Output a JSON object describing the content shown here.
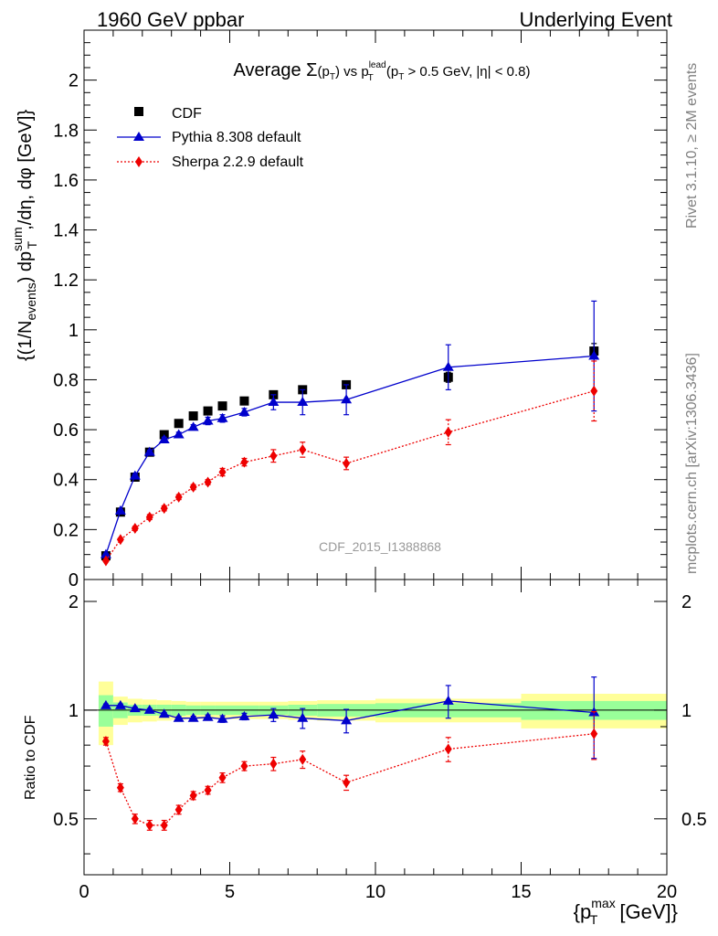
{
  "header": {
    "left": "1960 GeV ppbar",
    "right": "Underlying Event"
  },
  "side_labels": {
    "rivet": "Rivet 3.1.10, ≥ 2M events",
    "mcplots": "mcplots.cern.ch [arXiv:1306.3436]"
  },
  "watermark": "CDF_2015_I1388868",
  "colors": {
    "cdf": "#000000",
    "pythia": "#0000cc",
    "sherpa": "#ee0000",
    "band_inner": "#99ff99",
    "band_outer": "#ffff99"
  },
  "chart_data": [
    {
      "type": "scatter",
      "title": "Average Σ(pT) vs pT lead (pT > 0.5 GeV, |η| < 0.8)",
      "title_parts": {
        "prefix": "Average ",
        "sigma": "Σ",
        "p": "p",
        "T": "T",
        "vs": " vs ",
        "lead": "lead",
        "cut_open": " (p",
        "cut_rest": " > 0.5 GeV, |η| < 0.8)"
      },
      "ylabel": "{(1/N_events) dp_T^sum/dη, dφ [GeV]}",
      "ylabel_parts": {
        "open": "{(1/N",
        "events": "events",
        "mid": ") dp",
        "sum": "sum",
        "T": "T",
        "rest": ",/dη, dφ [GeV]}"
      },
      "xlim": [
        0,
        20
      ],
      "ylim": [
        0,
        2.2
      ],
      "yticks": [
        0,
        0.2,
        0.4,
        0.6,
        0.8,
        1,
        1.2,
        1.4,
        1.6,
        1.8,
        2
      ],
      "ytick_labels": [
        "0",
        "0.2",
        "0.4",
        "0.6",
        "0.8",
        "1",
        "1.2",
        "1.4",
        "1.6",
        "1.8",
        "2"
      ],
      "legend_position": "top-left",
      "series": [
        {
          "name": "CDF",
          "style": "square",
          "x": [
            0.75,
            1.25,
            1.75,
            2.25,
            2.75,
            3.25,
            3.75,
            4.25,
            4.75,
            5.5,
            6.5,
            7.5,
            9,
            12.5,
            17.5
          ],
          "y": [
            0.095,
            0.27,
            0.41,
            0.51,
            0.58,
            0.625,
            0.655,
            0.675,
            0.695,
            0.715,
            0.74,
            0.76,
            0.78,
            0.81,
            0.915
          ],
          "yerr": [
            0.005,
            0.01,
            0.01,
            0.01,
            0.01,
            0.01,
            0.01,
            0.01,
            0.01,
            0.01,
            0.01,
            0.01,
            0.01,
            0.02,
            0.03
          ]
        },
        {
          "name": "Pythia 8.308 default",
          "style": "triangle",
          "x": [
            0.75,
            1.25,
            1.75,
            2.25,
            2.75,
            3.25,
            3.75,
            4.25,
            4.75,
            5.5,
            6.5,
            7.5,
            9,
            12.5,
            17.5
          ],
          "y": [
            0.1,
            0.275,
            0.415,
            0.51,
            0.56,
            0.58,
            0.61,
            0.635,
            0.645,
            0.67,
            0.71,
            0.71,
            0.72,
            0.85,
            0.895
          ],
          "yerr": [
            0.003,
            0.005,
            0.008,
            0.008,
            0.01,
            0.01,
            0.01,
            0.015,
            0.015,
            0.015,
            0.03,
            0.05,
            0.06,
            0.09,
            0.22
          ]
        },
        {
          "name": "Sherpa 2.2.9 default",
          "style": "diamond",
          "x": [
            0.75,
            1.25,
            1.75,
            2.25,
            2.75,
            3.25,
            3.75,
            4.25,
            4.75,
            5.5,
            6.5,
            7.5,
            9,
            12.5,
            17.5
          ],
          "y": [
            0.075,
            0.16,
            0.205,
            0.25,
            0.285,
            0.33,
            0.37,
            0.39,
            0.43,
            0.47,
            0.495,
            0.52,
            0.465,
            0.59,
            0.755
          ],
          "yerr": [
            0.003,
            0.005,
            0.008,
            0.01,
            0.01,
            0.01,
            0.01,
            0.01,
            0.015,
            0.015,
            0.025,
            0.03,
            0.025,
            0.05,
            0.12
          ]
        }
      ]
    },
    {
      "type": "scatter",
      "ylabel": "Ratio to CDF",
      "xlabel": "{pT max [GeV]}",
      "xlabel_parts": {
        "open": "{p",
        "max": "max",
        "T": "T",
        "rest": " [GeV]}"
      },
      "xlim": [
        0,
        20
      ],
      "ylim": [
        0.35,
        2.3
      ],
      "yticks": [
        0.5,
        1,
        2
      ],
      "ytick_labels": [
        "0.5",
        "1",
        "2"
      ],
      "xticks": [
        0,
        5,
        10,
        15,
        20
      ],
      "xtick_labels": [
        "0",
        "5",
        "10",
        "15",
        "20"
      ],
      "bands": {
        "x_edges": [
          0.5,
          1.0,
          1.5,
          2.0,
          2.5,
          3.0,
          3.5,
          4.0,
          4.5,
          5.0,
          6.0,
          7.0,
          8.0,
          10.0,
          15.0,
          20.0
        ],
        "inner_half": [
          0.1,
          0.05,
          0.035,
          0.035,
          0.035,
          0.035,
          0.03,
          0.03,
          0.03,
          0.03,
          0.03,
          0.035,
          0.04,
          0.045,
          0.06
        ],
        "outer_half": [
          0.2,
          0.09,
          0.075,
          0.07,
          0.065,
          0.06,
          0.055,
          0.055,
          0.055,
          0.055,
          0.055,
          0.06,
          0.065,
          0.075,
          0.11
        ]
      },
      "series": [
        {
          "name": "Pythia 8.308 default",
          "style": "triangle",
          "x": [
            0.75,
            1.25,
            1.75,
            2.25,
            2.75,
            3.25,
            3.75,
            4.25,
            4.75,
            5.5,
            6.5,
            7.5,
            9,
            12.5,
            17.5
          ],
          "y": [
            1.03,
            1.03,
            1.01,
            1.0,
            0.975,
            0.95,
            0.95,
            0.955,
            0.945,
            0.96,
            0.97,
            0.95,
            0.935,
            1.06,
            0.985
          ],
          "yerr": [
            0.01,
            0.01,
            0.01,
            0.01,
            0.01,
            0.01,
            0.012,
            0.015,
            0.02,
            0.02,
            0.04,
            0.06,
            0.07,
            0.11,
            0.25
          ]
        },
        {
          "name": "Sherpa 2.2.9 default",
          "style": "diamond",
          "x": [
            0.75,
            1.25,
            1.75,
            2.25,
            2.75,
            3.25,
            3.75,
            4.25,
            4.75,
            5.5,
            6.5,
            7.5,
            9,
            12.5,
            17.5
          ],
          "y": [
            0.82,
            0.61,
            0.5,
            0.48,
            0.48,
            0.53,
            0.58,
            0.6,
            0.65,
            0.7,
            0.71,
            0.73,
            0.63,
            0.78,
            0.86
          ],
          "yerr": [
            0.02,
            0.015,
            0.015,
            0.015,
            0.015,
            0.015,
            0.015,
            0.015,
            0.02,
            0.02,
            0.03,
            0.04,
            0.03,
            0.06,
            0.13
          ]
        }
      ]
    }
  ]
}
